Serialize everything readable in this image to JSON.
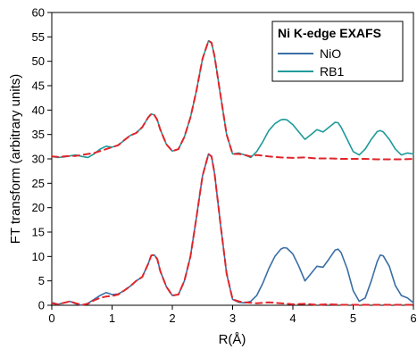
{
  "chart_data": {
    "type": "line",
    "xlabel": "R(Å)",
    "ylabel": "FT transform (arbitrary units)",
    "xlim": [
      0,
      6
    ],
    "ylim": [
      0,
      60
    ],
    "xticks": [
      0,
      1,
      2,
      3,
      4,
      5,
      6
    ],
    "yticks": [
      0,
      5,
      10,
      15,
      20,
      25,
      30,
      35,
      40,
      45,
      50,
      55,
      60
    ],
    "grid": false,
    "legend": {
      "title": "Ni K-edge EXAFS",
      "placement": "top-right",
      "entries": [
        "NiO",
        "RB1"
      ]
    },
    "series": [
      {
        "name": "NiO",
        "color": "#3a6ea5",
        "style": "solid",
        "points": [
          [
            0,
            0.6
          ],
          [
            0.1,
            0.2
          ],
          [
            0.2,
            0.5
          ],
          [
            0.3,
            0.8
          ],
          [
            0.4,
            0.3
          ],
          [
            0.5,
            0.0
          ],
          [
            0.6,
            0.4
          ],
          [
            0.7,
            1.2
          ],
          [
            0.8,
            2.0
          ],
          [
            0.9,
            2.6
          ],
          [
            1.0,
            2.2
          ],
          [
            1.1,
            2.3
          ],
          [
            1.2,
            3.0
          ],
          [
            1.3,
            3.9
          ],
          [
            1.4,
            5.0
          ],
          [
            1.5,
            5.8
          ],
          [
            1.6,
            8.5
          ],
          [
            1.65,
            10.2
          ],
          [
            1.7,
            10.3
          ],
          [
            1.75,
            9.5
          ],
          [
            1.8,
            7.0
          ],
          [
            1.9,
            3.8
          ],
          [
            2.0,
            2.0
          ],
          [
            2.1,
            2.2
          ],
          [
            2.2,
            5.0
          ],
          [
            2.3,
            10.0
          ],
          [
            2.4,
            18.0
          ],
          [
            2.5,
            26.5
          ],
          [
            2.6,
            31.0
          ],
          [
            2.65,
            30.5
          ],
          [
            2.7,
            27.0
          ],
          [
            2.8,
            16.5
          ],
          [
            2.9,
            6.5
          ],
          [
            3.0,
            1.2
          ],
          [
            3.1,
            0.6
          ],
          [
            3.2,
            0.5
          ],
          [
            3.3,
            0.8
          ],
          [
            3.4,
            2.0
          ],
          [
            3.5,
            4.5
          ],
          [
            3.6,
            7.5
          ],
          [
            3.7,
            10.0
          ],
          [
            3.8,
            11.5
          ],
          [
            3.85,
            11.8
          ],
          [
            3.9,
            11.7
          ],
          [
            4.0,
            10.5
          ],
          [
            4.1,
            8.0
          ],
          [
            4.2,
            5.0
          ],
          [
            4.3,
            6.5
          ],
          [
            4.4,
            8.0
          ],
          [
            4.5,
            7.8
          ],
          [
            4.6,
            9.5
          ],
          [
            4.7,
            11.3
          ],
          [
            4.75,
            11.5
          ],
          [
            4.8,
            10.8
          ],
          [
            4.9,
            7.5
          ],
          [
            5.0,
            3.0
          ],
          [
            5.1,
            0.8
          ],
          [
            5.2,
            1.5
          ],
          [
            5.3,
            5.0
          ],
          [
            5.4,
            9.0
          ],
          [
            5.45,
            10.3
          ],
          [
            5.5,
            10.1
          ],
          [
            5.6,
            8.0
          ],
          [
            5.7,
            4.0
          ],
          [
            5.8,
            2.0
          ],
          [
            5.9,
            1.5
          ],
          [
            6.0,
            0.5
          ]
        ]
      },
      {
        "name": "NiO fit",
        "color": "#e0252a",
        "style": "dashed",
        "points": [
          [
            0,
            0.4
          ],
          [
            0.1,
            0.2
          ],
          [
            0.2,
            0.5
          ],
          [
            0.3,
            0.8
          ],
          [
            0.4,
            0.4
          ],
          [
            0.5,
            0.1
          ],
          [
            0.6,
            0.3
          ],
          [
            0.7,
            1.0
          ],
          [
            0.8,
            1.5
          ],
          [
            0.9,
            1.8
          ],
          [
            1.0,
            1.9
          ],
          [
            1.1,
            2.2
          ],
          [
            1.2,
            3.0
          ],
          [
            1.3,
            3.9
          ],
          [
            1.4,
            5.0
          ],
          [
            1.5,
            5.8
          ],
          [
            1.6,
            8.5
          ],
          [
            1.65,
            10.2
          ],
          [
            1.7,
            10.3
          ],
          [
            1.75,
            9.5
          ],
          [
            1.8,
            7.0
          ],
          [
            1.9,
            3.8
          ],
          [
            2.0,
            2.0
          ],
          [
            2.1,
            2.2
          ],
          [
            2.2,
            5.0
          ],
          [
            2.3,
            10.0
          ],
          [
            2.4,
            18.0
          ],
          [
            2.5,
            26.5
          ],
          [
            2.6,
            31.0
          ],
          [
            2.65,
            30.5
          ],
          [
            2.7,
            27.0
          ],
          [
            2.8,
            16.5
          ],
          [
            2.9,
            6.5
          ],
          [
            3.0,
            1.2
          ],
          [
            3.1,
            0.8
          ],
          [
            3.2,
            0.6
          ],
          [
            3.4,
            0.4
          ],
          [
            3.6,
            0.6
          ],
          [
            3.8,
            0.4
          ],
          [
            4.0,
            0.2
          ],
          [
            4.2,
            0.3
          ],
          [
            4.4,
            0.1
          ],
          [
            4.6,
            0.2
          ],
          [
            4.8,
            0.1
          ],
          [
            5.0,
            0.1
          ],
          [
            5.2,
            0.1
          ],
          [
            5.4,
            0.1
          ],
          [
            5.6,
            0.1
          ],
          [
            5.8,
            0.1
          ],
          [
            6.0,
            0.1
          ]
        ]
      },
      {
        "name": "RB1",
        "color": "#1f9a9a",
        "style": "solid",
        "points": [
          [
            0,
            30.5
          ],
          [
            0.1,
            30.3
          ],
          [
            0.2,
            30.4
          ],
          [
            0.3,
            30.6
          ],
          [
            0.4,
            30.8
          ],
          [
            0.5,
            30.5
          ],
          [
            0.6,
            30.3
          ],
          [
            0.7,
            31.0
          ],
          [
            0.8,
            32.0
          ],
          [
            0.9,
            32.6
          ],
          [
            1.0,
            32.4
          ],
          [
            1.1,
            32.8
          ],
          [
            1.2,
            33.8
          ],
          [
            1.3,
            34.8
          ],
          [
            1.4,
            35.3
          ],
          [
            1.5,
            36.5
          ],
          [
            1.6,
            38.5
          ],
          [
            1.65,
            39.2
          ],
          [
            1.7,
            39.0
          ],
          [
            1.75,
            38.0
          ],
          [
            1.8,
            36.0
          ],
          [
            1.9,
            33.0
          ],
          [
            2.0,
            31.6
          ],
          [
            2.1,
            32.0
          ],
          [
            2.2,
            34.5
          ],
          [
            2.3,
            38.5
          ],
          [
            2.4,
            44.0
          ],
          [
            2.5,
            50.5
          ],
          [
            2.6,
            54.2
          ],
          [
            2.65,
            53.8
          ],
          [
            2.7,
            51.0
          ],
          [
            2.8,
            43.0
          ],
          [
            2.9,
            35.0
          ],
          [
            3.0,
            31.0
          ],
          [
            3.1,
            31.2
          ],
          [
            3.2,
            30.8
          ],
          [
            3.3,
            30.3
          ],
          [
            3.4,
            31.5
          ],
          [
            3.5,
            33.5
          ],
          [
            3.6,
            35.8
          ],
          [
            3.7,
            37.2
          ],
          [
            3.8,
            38.0
          ],
          [
            3.85,
            38.1
          ],
          [
            3.9,
            38.0
          ],
          [
            4.0,
            37.0
          ],
          [
            4.1,
            35.5
          ],
          [
            4.2,
            34.0
          ],
          [
            4.3,
            35.0
          ],
          [
            4.4,
            36.0
          ],
          [
            4.5,
            35.5
          ],
          [
            4.6,
            36.5
          ],
          [
            4.7,
            37.5
          ],
          [
            4.75,
            37.4
          ],
          [
            4.8,
            36.5
          ],
          [
            4.9,
            34.0
          ],
          [
            5.0,
            31.5
          ],
          [
            5.1,
            30.8
          ],
          [
            5.2,
            32.0
          ],
          [
            5.3,
            34.0
          ],
          [
            5.4,
            35.6
          ],
          [
            5.45,
            35.8
          ],
          [
            5.5,
            35.5
          ],
          [
            5.6,
            34.0
          ],
          [
            5.7,
            32.0
          ],
          [
            5.8,
            30.8
          ],
          [
            5.9,
            31.2
          ],
          [
            6.0,
            31.0
          ]
        ]
      },
      {
        "name": "RB1 fit",
        "color": "#e0252a",
        "style": "dashed",
        "points": [
          [
            0,
            30.5
          ],
          [
            0.1,
            30.4
          ],
          [
            0.2,
            30.5
          ],
          [
            0.3,
            30.6
          ],
          [
            0.4,
            30.6
          ],
          [
            0.5,
            30.8
          ],
          [
            0.6,
            31.0
          ],
          [
            0.7,
            31.2
          ],
          [
            0.8,
            31.6
          ],
          [
            0.9,
            32.0
          ],
          [
            1.0,
            32.4
          ],
          [
            1.1,
            32.8
          ],
          [
            1.2,
            33.8
          ],
          [
            1.3,
            34.8
          ],
          [
            1.4,
            35.3
          ],
          [
            1.5,
            36.5
          ],
          [
            1.6,
            38.5
          ],
          [
            1.65,
            39.2
          ],
          [
            1.7,
            39.0
          ],
          [
            1.75,
            38.0
          ],
          [
            1.8,
            36.0
          ],
          [
            1.9,
            33.0
          ],
          [
            2.0,
            31.6
          ],
          [
            2.1,
            32.0
          ],
          [
            2.2,
            34.5
          ],
          [
            2.3,
            38.5
          ],
          [
            2.4,
            44.0
          ],
          [
            2.5,
            50.5
          ],
          [
            2.6,
            54.2
          ],
          [
            2.65,
            53.8
          ],
          [
            2.7,
            51.0
          ],
          [
            2.8,
            43.0
          ],
          [
            2.9,
            35.0
          ],
          [
            3.0,
            31.0
          ],
          [
            3.1,
            31.0
          ],
          [
            3.2,
            30.8
          ],
          [
            3.3,
            30.5
          ],
          [
            3.4,
            30.8
          ],
          [
            3.6,
            30.5
          ],
          [
            3.8,
            30.3
          ],
          [
            4.0,
            30.2
          ],
          [
            4.2,
            30.3
          ],
          [
            4.4,
            30.1
          ],
          [
            4.6,
            30.1
          ],
          [
            4.8,
            30.0
          ],
          [
            5.0,
            30.0
          ],
          [
            5.2,
            30.0
          ],
          [
            5.4,
            29.9
          ],
          [
            5.6,
            29.9
          ],
          [
            5.8,
            29.9
          ],
          [
            6.0,
            30.0
          ]
        ]
      }
    ]
  }
}
